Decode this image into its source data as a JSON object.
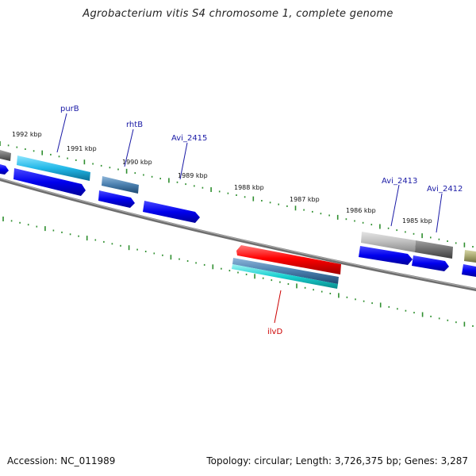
{
  "title": "Agrobacterium vitis S4 chromosome 1, complete genome",
  "footer": {
    "accession": "Accession: NC_011989",
    "summary": "Topology: circular; Length: 3,726,375 bp; Genes: 3,287"
  },
  "kbp_labels": [
    "1992 kbp",
    "1991 kbp",
    "1990 kbp",
    "1989 kbp",
    "1988 kbp",
    "1987 kbp",
    "1986 kbp",
    "1985 kbp"
  ],
  "gene_labels": [
    {
      "name": "purB",
      "color": "#1a1aa6"
    },
    {
      "name": "rhtB",
      "color": "#1a1aa6"
    },
    {
      "name": "Avi_2415",
      "color": "#1a1aa6"
    },
    {
      "name": "Avi_2413",
      "color": "#1a1aa6"
    },
    {
      "name": "Avi_2412",
      "color": "#1a1aa6"
    },
    {
      "name": "ilvD",
      "color": "#cc0000"
    }
  ],
  "colors": {
    "backbone": "#7a7a7a",
    "tick": "#2f8f2f",
    "cds": "#0000ee",
    "rrna": "#ff0000",
    "purB": "#22b8e8",
    "rhtB": "#4a7fae",
    "gray": "#bdbdbd",
    "dark_gray": "#6e6e6e",
    "olive": "#a8a870"
  }
}
